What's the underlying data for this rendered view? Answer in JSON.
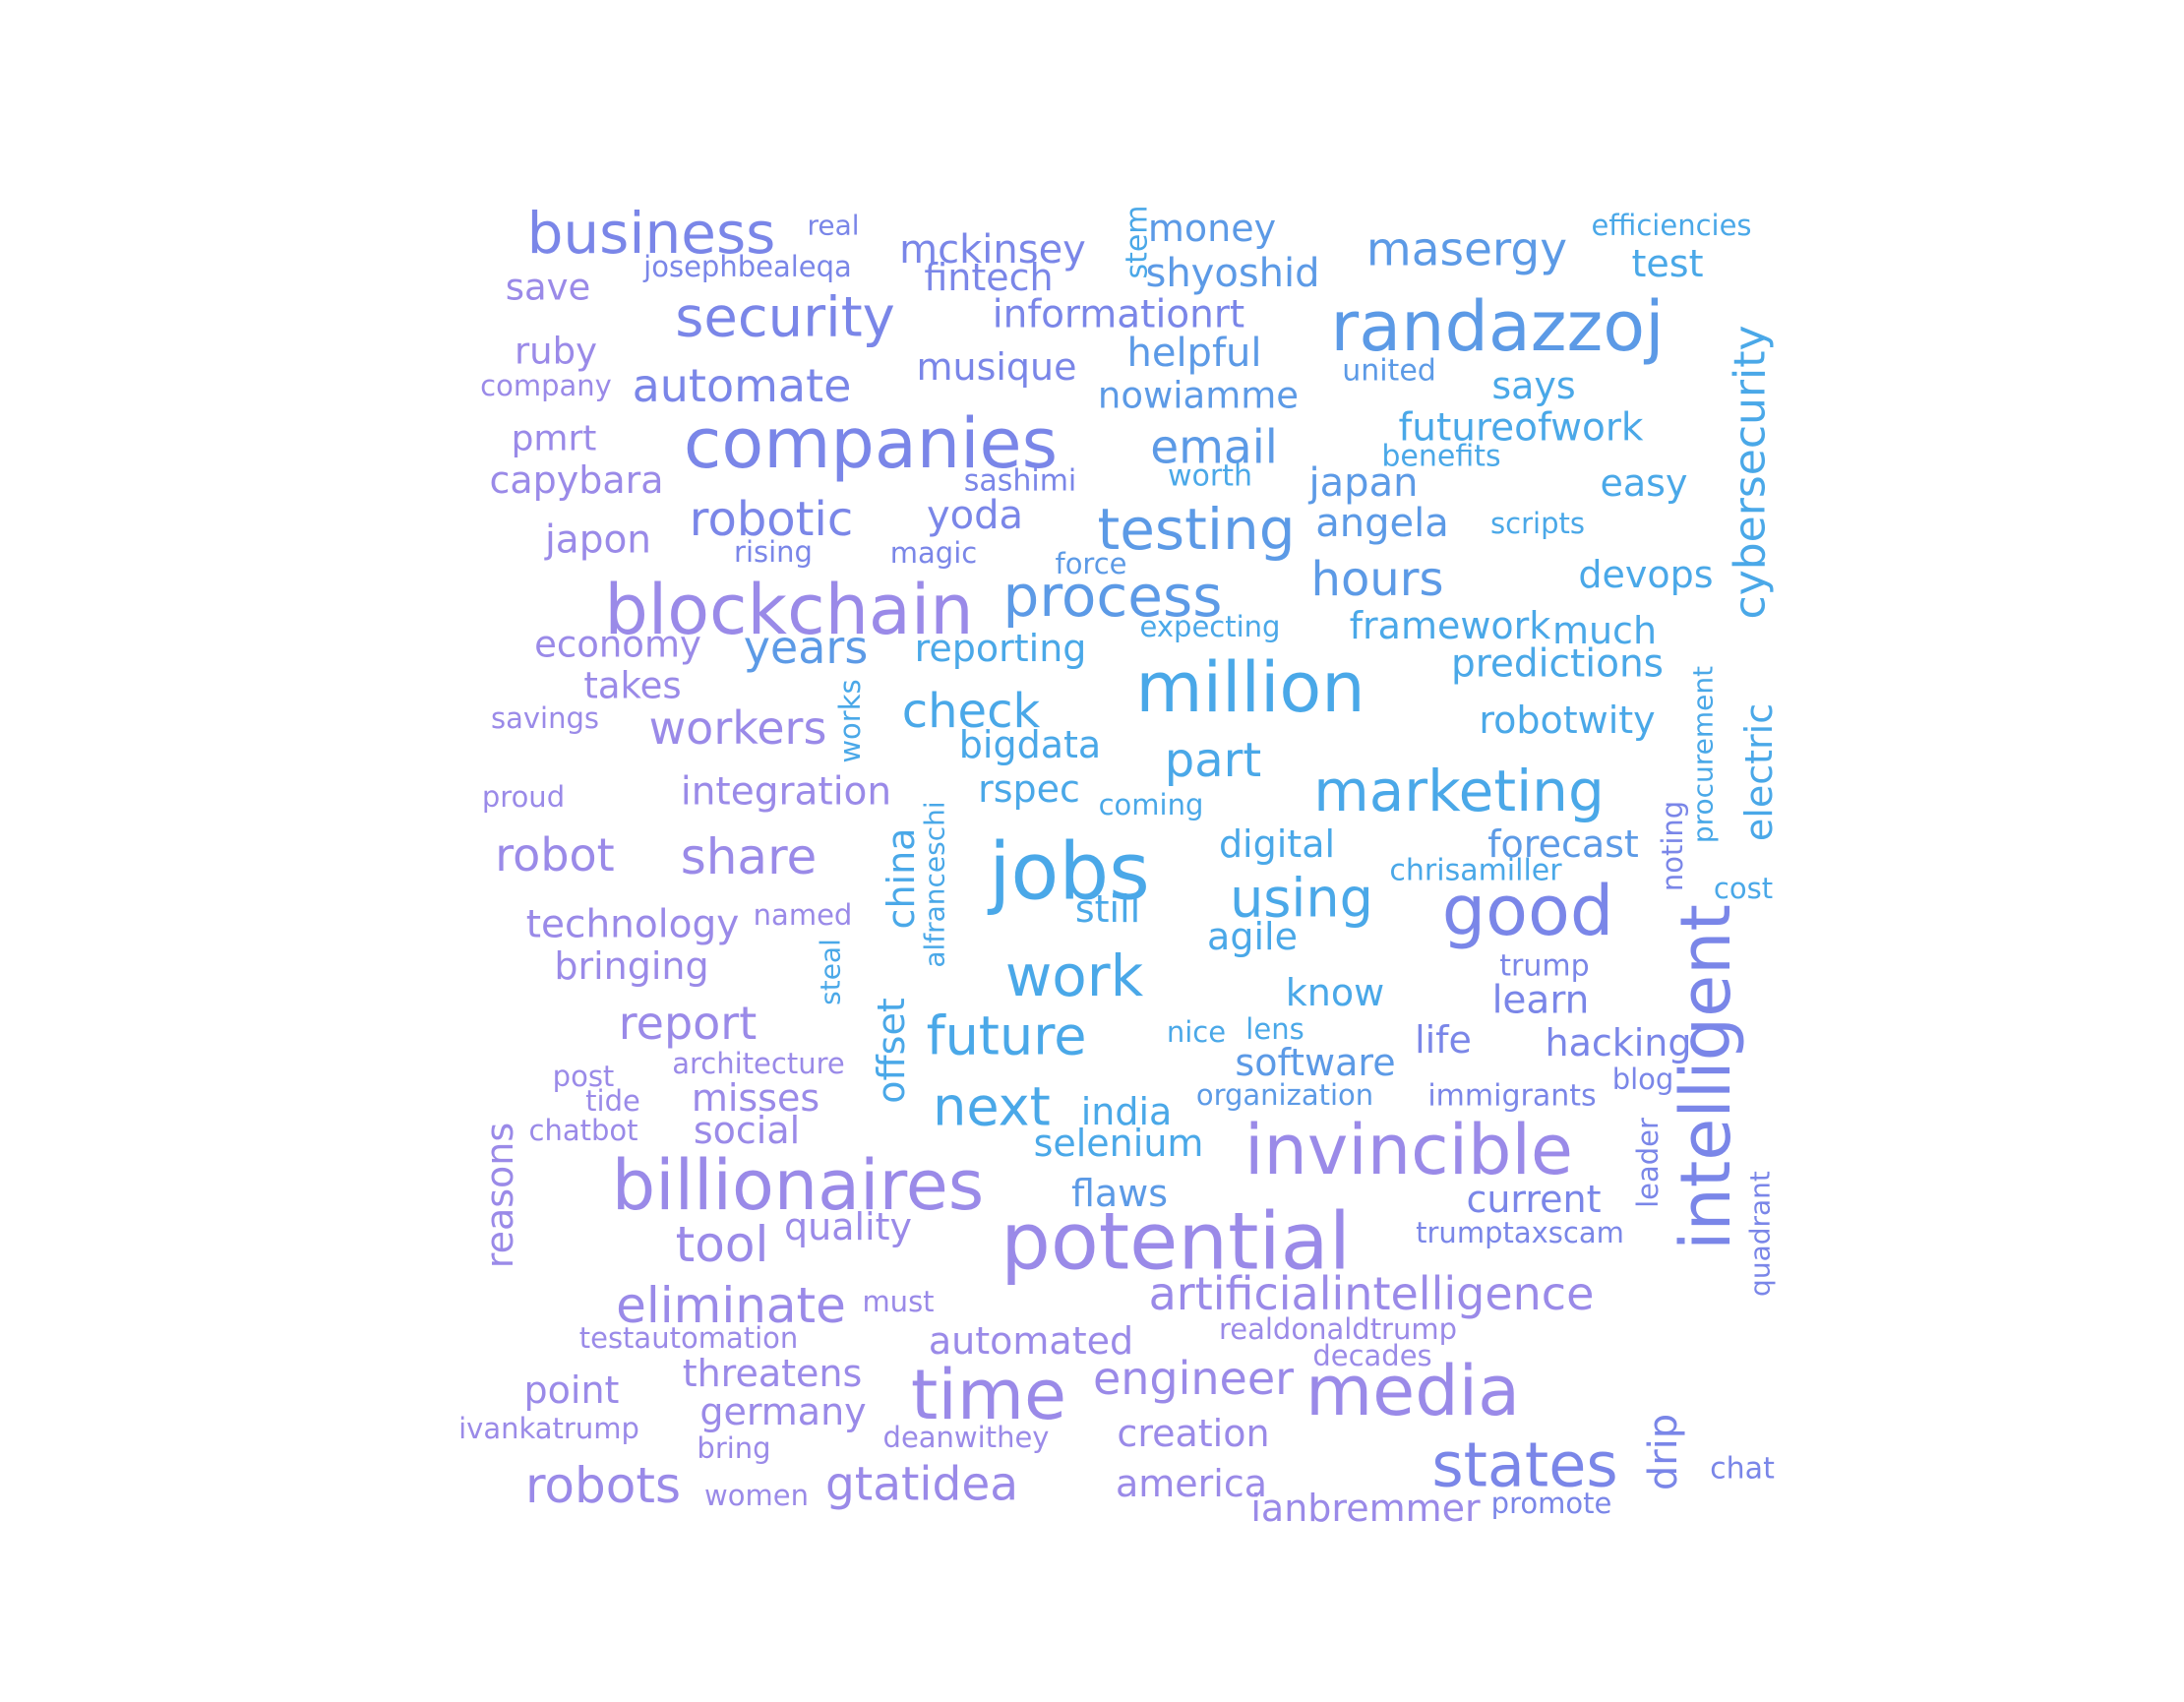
{
  "palette": {
    "blue": "#4aa8e8",
    "azure": "#5c9ae6",
    "indigo": "#7a86e8",
    "violet": "#9a8ae8",
    "lilac": "#a894e8"
  },
  "words": [
    {
      "text": "business",
      "color": "#7a86e8"
    },
    {
      "text": "real",
      "color": "#7a86e8"
    },
    {
      "text": "mckinsey",
      "color": "#7a86e8"
    },
    {
      "text": "stem",
      "color": "#4aa8e8"
    },
    {
      "text": "money",
      "color": "#5c9ae6"
    },
    {
      "text": "masergy",
      "color": "#5c9ae6"
    },
    {
      "text": "efficiencies",
      "color": "#4aa8e8"
    },
    {
      "text": "josephbealeqa",
      "color": "#7a86e8"
    },
    {
      "text": "shyoshid",
      "color": "#5c9ae6"
    },
    {
      "text": "test",
      "color": "#4aa8e8"
    },
    {
      "text": "save",
      "color": "#9a8ae8"
    },
    {
      "text": "fintech",
      "color": "#7a86e8"
    },
    {
      "text": "security",
      "color": "#7a86e8"
    },
    {
      "text": "informationrt",
      "color": "#7a86e8"
    },
    {
      "text": "randazzoj",
      "color": "#5c9ae6"
    },
    {
      "text": "ruby",
      "color": "#9a8ae8"
    },
    {
      "text": "helpful",
      "color": "#5c9ae6"
    },
    {
      "text": "musique",
      "color": "#7a86e8"
    },
    {
      "text": "united",
      "color": "#5c9ae6"
    },
    {
      "text": "company",
      "color": "#9a8ae8"
    },
    {
      "text": "automate",
      "color": "#7a86e8"
    },
    {
      "text": "says",
      "color": "#4aa8e8"
    },
    {
      "text": "nowiamme",
      "color": "#5c9ae6"
    },
    {
      "text": "pmrt",
      "color": "#9a8ae8"
    },
    {
      "text": "futureofwork",
      "color": "#4aa8e8"
    },
    {
      "text": "companies",
      "color": "#7a86e8"
    },
    {
      "text": "email",
      "color": "#5c9ae6"
    },
    {
      "text": "benefits",
      "color": "#4aa8e8"
    },
    {
      "text": "capybara",
      "color": "#9a8ae8"
    },
    {
      "text": "sashimi",
      "color": "#7a86e8"
    },
    {
      "text": "worth",
      "color": "#4aa8e8"
    },
    {
      "text": "japan",
      "color": "#5c9ae6"
    },
    {
      "text": "easy",
      "color": "#4aa8e8"
    },
    {
      "text": "cybersecurity",
      "color": "#4aa8e8"
    },
    {
      "text": "robotic",
      "color": "#7a86e8"
    },
    {
      "text": "yoda",
      "color": "#7a86e8"
    },
    {
      "text": "testing",
      "color": "#5c9ae6"
    },
    {
      "text": "angela",
      "color": "#5c9ae6"
    },
    {
      "text": "scripts",
      "color": "#4aa8e8"
    },
    {
      "text": "japon",
      "color": "#9a8ae8"
    },
    {
      "text": "rising",
      "color": "#7a86e8"
    },
    {
      "text": "magic",
      "color": "#7a86e8"
    },
    {
      "text": "force",
      "color": "#5c9ae6"
    },
    {
      "text": "hours",
      "color": "#5c9ae6"
    },
    {
      "text": "devops",
      "color": "#4aa8e8"
    },
    {
      "text": "blockchain",
      "color": "#9a8ae8"
    },
    {
      "text": "process",
      "color": "#5c9ae6"
    },
    {
      "text": "expecting",
      "color": "#4aa8e8"
    },
    {
      "text": "framework",
      "color": "#4aa8e8"
    },
    {
      "text": "much",
      "color": "#4aa8e8"
    },
    {
      "text": "economy",
      "color": "#9a8ae8"
    },
    {
      "text": "years",
      "color": "#5c9ae6"
    },
    {
      "text": "reporting",
      "color": "#4aa8e8"
    },
    {
      "text": "million",
      "color": "#4aa8e8"
    },
    {
      "text": "predictions",
      "color": "#4aa8e8"
    },
    {
      "text": "takes",
      "color": "#9a8ae8"
    },
    {
      "text": "procurement",
      "color": "#4aa8e8"
    },
    {
      "text": "electric",
      "color": "#4aa8e8"
    },
    {
      "text": "savings",
      "color": "#9a8ae8"
    },
    {
      "text": "workers",
      "color": "#9a8ae8"
    },
    {
      "text": "works",
      "color": "#4aa8e8"
    },
    {
      "text": "check",
      "color": "#4aa8e8"
    },
    {
      "text": "robotwity",
      "color": "#4aa8e8"
    },
    {
      "text": "bigdata",
      "color": "#4aa8e8"
    },
    {
      "text": "part",
      "color": "#4aa8e8"
    },
    {
      "text": "proud",
      "color": "#9a8ae8"
    },
    {
      "text": "integration",
      "color": "#9a8ae8"
    },
    {
      "text": "rspec",
      "color": "#4aa8e8"
    },
    {
      "text": "coming",
      "color": "#4aa8e8"
    },
    {
      "text": "marketing",
      "color": "#4aa8e8"
    },
    {
      "text": "noting",
      "color": "#7a86e8"
    },
    {
      "text": "robot",
      "color": "#9a8ae8"
    },
    {
      "text": "share",
      "color": "#9a8ae8"
    },
    {
      "text": "alfranceschi",
      "color": "#4aa8e8"
    },
    {
      "text": "china",
      "color": "#4aa8e8"
    },
    {
      "text": "jobs",
      "color": "#4aa8e8"
    },
    {
      "text": "digital",
      "color": "#4aa8e8"
    },
    {
      "text": "forecast",
      "color": "#5c9ae6"
    },
    {
      "text": "chrisamiller",
      "color": "#4aa8e8"
    },
    {
      "text": "cost",
      "color": "#4aa8e8"
    },
    {
      "text": "using",
      "color": "#4aa8e8"
    },
    {
      "text": "good",
      "color": "#7a86e8"
    },
    {
      "text": "named",
      "color": "#9a8ae8"
    },
    {
      "text": "still",
      "color": "#4aa8e8"
    },
    {
      "text": "technology",
      "color": "#9a8ae8"
    },
    {
      "text": "agile",
      "color": "#4aa8e8"
    },
    {
      "text": "bringing",
      "color": "#9a8ae8"
    },
    {
      "text": "steal",
      "color": "#4aa8e8"
    },
    {
      "text": "work",
      "color": "#4aa8e8"
    },
    {
      "text": "trump",
      "color": "#7a86e8"
    },
    {
      "text": "intelligent",
      "color": "#7a86e8"
    },
    {
      "text": "offset",
      "color": "#4aa8e8"
    },
    {
      "text": "know",
      "color": "#4aa8e8"
    },
    {
      "text": "learn",
      "color": "#7a86e8"
    },
    {
      "text": "report",
      "color": "#9a8ae8"
    },
    {
      "text": "future",
      "color": "#4aa8e8"
    },
    {
      "text": "nice",
      "color": "#4aa8e8"
    },
    {
      "text": "lens",
      "color": "#4aa8e8"
    },
    {
      "text": "life",
      "color": "#7a86e8"
    },
    {
      "text": "hacking",
      "color": "#7a86e8"
    },
    {
      "text": "architecture",
      "color": "#9a8ae8"
    },
    {
      "text": "software",
      "color": "#5c9ae6"
    },
    {
      "text": "blog",
      "color": "#7a86e8"
    },
    {
      "text": "post",
      "color": "#9a8ae8"
    },
    {
      "text": "tide",
      "color": "#9a8ae8"
    },
    {
      "text": "misses",
      "color": "#9a8ae8"
    },
    {
      "text": "next",
      "color": "#4aa8e8"
    },
    {
      "text": "india",
      "color": "#4aa8e8"
    },
    {
      "text": "organization",
      "color": "#5c9ae6"
    },
    {
      "text": "immigrants",
      "color": "#7a86e8"
    },
    {
      "text": "leader",
      "color": "#7a86e8"
    },
    {
      "text": "chatbot",
      "color": "#9a8ae8"
    },
    {
      "text": "social",
      "color": "#9a8ae8"
    },
    {
      "text": "selenium",
      "color": "#4aa8e8"
    },
    {
      "text": "invincible",
      "color": "#9a8ae8"
    },
    {
      "text": "reasons",
      "color": "#9a8ae8"
    },
    {
      "text": "billionaires",
      "color": "#9a8ae8"
    },
    {
      "text": "flaws",
      "color": "#5c9ae6"
    },
    {
      "text": "current",
      "color": "#7a86e8"
    },
    {
      "text": "quadrant",
      "color": "#7a86e8"
    },
    {
      "text": "quality",
      "color": "#9a8ae8"
    },
    {
      "text": "potential",
      "color": "#9a8ae8"
    },
    {
      "text": "trumptaxscam",
      "color": "#7a86e8"
    },
    {
      "text": "tool",
      "color": "#9a8ae8"
    },
    {
      "text": "artificialintelligence",
      "color": "#9a8ae8"
    },
    {
      "text": "eliminate",
      "color": "#9a8ae8"
    },
    {
      "text": "must",
      "color": "#9a8ae8"
    },
    {
      "text": "realdonaldtrump",
      "color": "#9a8ae8"
    },
    {
      "text": "testautomation",
      "color": "#9a8ae8"
    },
    {
      "text": "automated",
      "color": "#9a8ae8"
    },
    {
      "text": "decades",
      "color": "#9a8ae8"
    },
    {
      "text": "threatens",
      "color": "#9a8ae8"
    },
    {
      "text": "point",
      "color": "#9a8ae8"
    },
    {
      "text": "time",
      "color": "#9a8ae8"
    },
    {
      "text": "engineer",
      "color": "#9a8ae8"
    },
    {
      "text": "media",
      "color": "#9a8ae8"
    },
    {
      "text": "germany",
      "color": "#9a8ae8"
    },
    {
      "text": "ivankatrump",
      "color": "#9a8ae8"
    },
    {
      "text": "deanwithey",
      "color": "#9a8ae8"
    },
    {
      "text": "creation",
      "color": "#9a8ae8"
    },
    {
      "text": "bring",
      "color": "#9a8ae8"
    },
    {
      "text": "drip",
      "color": "#7a86e8"
    },
    {
      "text": "states",
      "color": "#7a86e8"
    },
    {
      "text": "chat",
      "color": "#7a86e8"
    },
    {
      "text": "robots",
      "color": "#9a8ae8"
    },
    {
      "text": "women",
      "color": "#9a8ae8"
    },
    {
      "text": "gtatidea",
      "color": "#9a8ae8"
    },
    {
      "text": "america",
      "color": "#9a8ae8"
    },
    {
      "text": "ianbremmer",
      "color": "#9a8ae8"
    },
    {
      "text": "promote",
      "color": "#7a86e8"
    }
  ]
}
